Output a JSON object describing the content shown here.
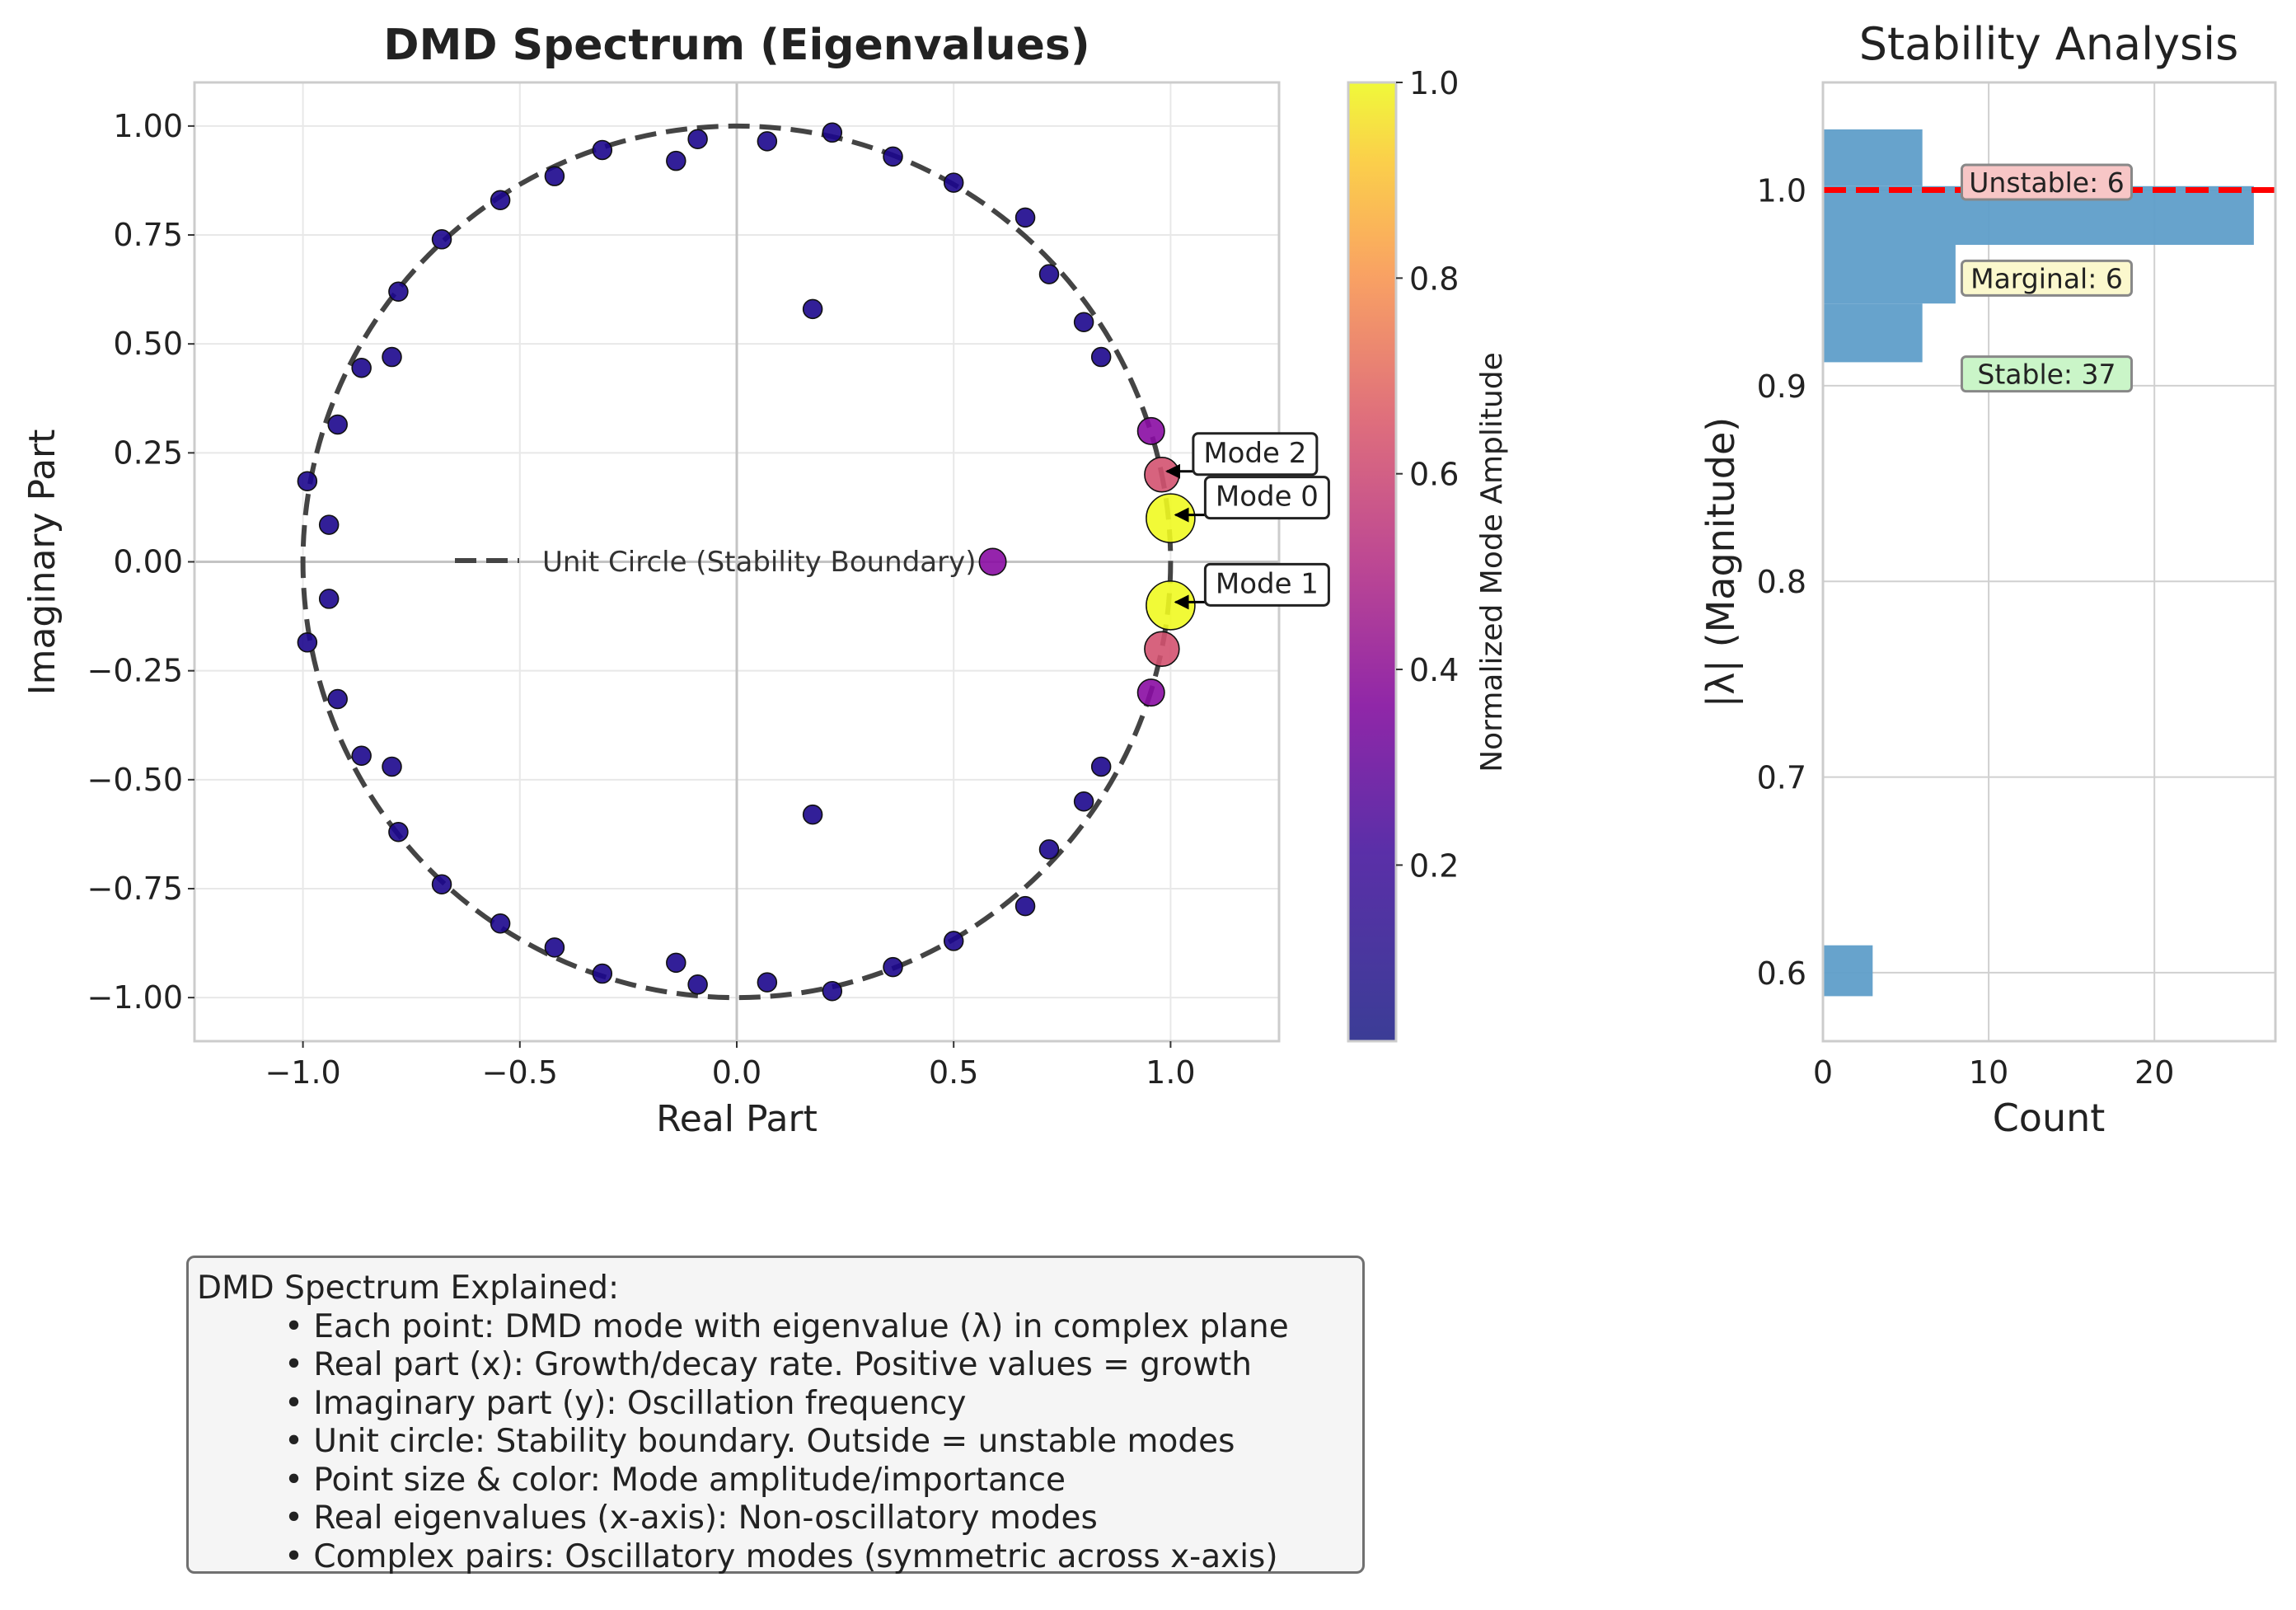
{
  "chart_data": [
    {
      "type": "scatter",
      "title": "DMD Spectrum (Eigenvalues)",
      "xlabel": "Real Part",
      "ylabel": "Imaginary Part",
      "xlim": [
        -1.25,
        1.25
      ],
      "ylim": [
        -1.1,
        1.1
      ],
      "xticks": [
        -1.0,
        -0.5,
        0.0,
        0.5,
        1.0
      ],
      "xtick_labels": [
        "−1.0",
        "−0.5",
        "0.0",
        "0.5",
        "1.0"
      ],
      "yticks": [
        -1.0,
        -0.75,
        -0.5,
        -0.25,
        0.0,
        0.25,
        0.5,
        0.75,
        1.0
      ],
      "ytick_labels": [
        "−1.00",
        "−0.75",
        "−0.50",
        "−0.25",
        "0.00",
        "0.25",
        "0.50",
        "0.75",
        "1.00"
      ],
      "grid": true,
      "legend": {
        "position": "center-left",
        "entries": [
          "Unit Circle (Stability Boundary)"
        ]
      },
      "colormap": "plasma",
      "colorbar": {
        "label": "Normalized Mode Amplitude",
        "range": [
          0.02,
          1.0
        ],
        "ticks": [
          0.2,
          0.4,
          0.6,
          0.8,
          1.0
        ],
        "tick_labels": [
          "0.2",
          "0.4",
          "0.6",
          "0.8",
          "1.0"
        ]
      },
      "points": [
        {
          "x": 1.0,
          "y": 0.1,
          "amp": 1.0
        },
        {
          "x": 1.0,
          "y": -0.1,
          "amp": 1.0
        },
        {
          "x": 0.98,
          "y": 0.2,
          "amp": 0.55
        },
        {
          "x": 0.98,
          "y": -0.2,
          "amp": 0.55
        },
        {
          "x": 0.955,
          "y": 0.3,
          "amp": 0.3
        },
        {
          "x": 0.955,
          "y": -0.3,
          "amp": 0.3
        },
        {
          "x": 0.59,
          "y": 0.0,
          "amp": 0.3
        },
        {
          "x": 0.84,
          "y": 0.47,
          "amp": 0.05
        },
        {
          "x": 0.84,
          "y": -0.47,
          "amp": 0.05
        },
        {
          "x": 0.8,
          "y": 0.55,
          "amp": 0.05
        },
        {
          "x": 0.8,
          "y": -0.55,
          "amp": 0.05
        },
        {
          "x": 0.72,
          "y": 0.66,
          "amp": 0.05
        },
        {
          "x": 0.72,
          "y": -0.66,
          "amp": 0.05
        },
        {
          "x": 0.665,
          "y": 0.79,
          "amp": 0.05
        },
        {
          "x": 0.665,
          "y": -0.79,
          "amp": 0.05
        },
        {
          "x": 0.5,
          "y": 0.87,
          "amp": 0.05
        },
        {
          "x": 0.5,
          "y": -0.87,
          "amp": 0.05
        },
        {
          "x": 0.36,
          "y": 0.93,
          "amp": 0.05
        },
        {
          "x": 0.36,
          "y": -0.93,
          "amp": 0.05
        },
        {
          "x": 0.22,
          "y": 0.985,
          "amp": 0.05
        },
        {
          "x": 0.22,
          "y": -0.985,
          "amp": 0.05
        },
        {
          "x": 0.175,
          "y": 0.58,
          "amp": 0.05
        },
        {
          "x": 0.175,
          "y": -0.58,
          "amp": 0.05
        },
        {
          "x": 0.07,
          "y": 0.965,
          "amp": 0.05
        },
        {
          "x": 0.07,
          "y": -0.965,
          "amp": 0.05
        },
        {
          "x": -0.09,
          "y": 0.97,
          "amp": 0.05
        },
        {
          "x": -0.09,
          "y": -0.97,
          "amp": 0.05
        },
        {
          "x": -0.14,
          "y": 0.92,
          "amp": 0.05
        },
        {
          "x": -0.14,
          "y": -0.92,
          "amp": 0.05
        },
        {
          "x": -0.31,
          "y": 0.945,
          "amp": 0.05
        },
        {
          "x": -0.31,
          "y": -0.945,
          "amp": 0.05
        },
        {
          "x": -0.42,
          "y": 0.885,
          "amp": 0.05
        },
        {
          "x": -0.42,
          "y": -0.885,
          "amp": 0.05
        },
        {
          "x": -0.545,
          "y": 0.83,
          "amp": 0.05
        },
        {
          "x": -0.545,
          "y": -0.83,
          "amp": 0.05
        },
        {
          "x": -0.68,
          "y": 0.74,
          "amp": 0.05
        },
        {
          "x": -0.68,
          "y": -0.74,
          "amp": 0.05
        },
        {
          "x": -0.78,
          "y": 0.62,
          "amp": 0.05
        },
        {
          "x": -0.78,
          "y": -0.62,
          "amp": 0.05
        },
        {
          "x": -0.795,
          "y": 0.47,
          "amp": 0.05
        },
        {
          "x": -0.795,
          "y": -0.47,
          "amp": 0.05
        },
        {
          "x": -0.865,
          "y": 0.445,
          "amp": 0.05
        },
        {
          "x": -0.865,
          "y": -0.445,
          "amp": 0.05
        },
        {
          "x": -0.92,
          "y": 0.315,
          "amp": 0.05
        },
        {
          "x": -0.92,
          "y": -0.315,
          "amp": 0.05
        },
        {
          "x": -0.94,
          "y": 0.085,
          "amp": 0.05
        },
        {
          "x": -0.94,
          "y": -0.085,
          "amp": 0.05
        },
        {
          "x": -0.99,
          "y": 0.185,
          "amp": 0.05
        },
        {
          "x": -0.99,
          "y": -0.185,
          "amp": 0.05
        }
      ],
      "annotations": [
        {
          "text": "Mode 0",
          "x": 1.0,
          "y": 0.1
        },
        {
          "text": "Mode 1",
          "x": 1.0,
          "y": -0.1
        },
        {
          "text": "Mode 2",
          "x": 0.98,
          "y": 0.2
        }
      ]
    },
    {
      "type": "bar",
      "orientation": "horizontal",
      "title": "Stability Analysis",
      "xlabel": "Count",
      "ylabel": "|λ| (Magnitude)",
      "xlim": [
        0,
        27.3
      ],
      "ylim": [
        0.565,
        1.055
      ],
      "xticks": [
        0,
        10,
        20
      ],
      "yticks": [
        0.6,
        0.7,
        0.8,
        0.9,
        1.0
      ],
      "ytick_labels": [
        "0.6",
        "0.7",
        "0.8",
        "0.9",
        "1.0"
      ],
      "grid": true,
      "bins": [
        {
          "from": 0.588,
          "to": 0.614,
          "count": 3
        },
        {
          "from": 0.912,
          "to": 0.942,
          "count": 6
        },
        {
          "from": 0.942,
          "to": 0.972,
          "count": 8
        },
        {
          "from": 0.972,
          "to": 1.002,
          "count": 26
        },
        {
          "from": 1.002,
          "to": 1.031,
          "count": 6
        }
      ],
      "threshold_line": {
        "y": 1.0,
        "color": "#ff0000",
        "style": "dashed"
      },
      "annotations": [
        {
          "text": "Unstable: 6",
          "x": 13.5,
          "y": 1.004,
          "color": "#f7c6c6"
        },
        {
          "text": "Marginal: 6",
          "x": 13.5,
          "y": 0.955,
          "color": "#fbf8cd"
        },
        {
          "text": "Stable: 37",
          "x": 13.5,
          "y": 0.906,
          "color": "#caf5c8"
        }
      ]
    }
  ],
  "explanation": {
    "title": "DMD Spectrum Explained:",
    "items": [
      "• Each point: DMD mode with eigenvalue (λ) in complex plane",
      "• Real part (x): Growth/decay rate. Positive values = growth",
      "• Imaginary part (y): Oscillation frequency",
      "• Unit circle: Stability boundary. Outside = unstable modes",
      "• Point size & color: Mode amplitude/importance",
      "• Real eigenvalues (x-axis): Non-oscillatory modes",
      "• Complex pairs: Oscillatory modes (symmetric across x-axis)"
    ]
  },
  "colors": {
    "unit_circle": "#444444",
    "bar": "#5f9ec9",
    "threshold": "#ff0000",
    "grid": "#e5e5e5",
    "axes_frame": "#cccccc"
  }
}
